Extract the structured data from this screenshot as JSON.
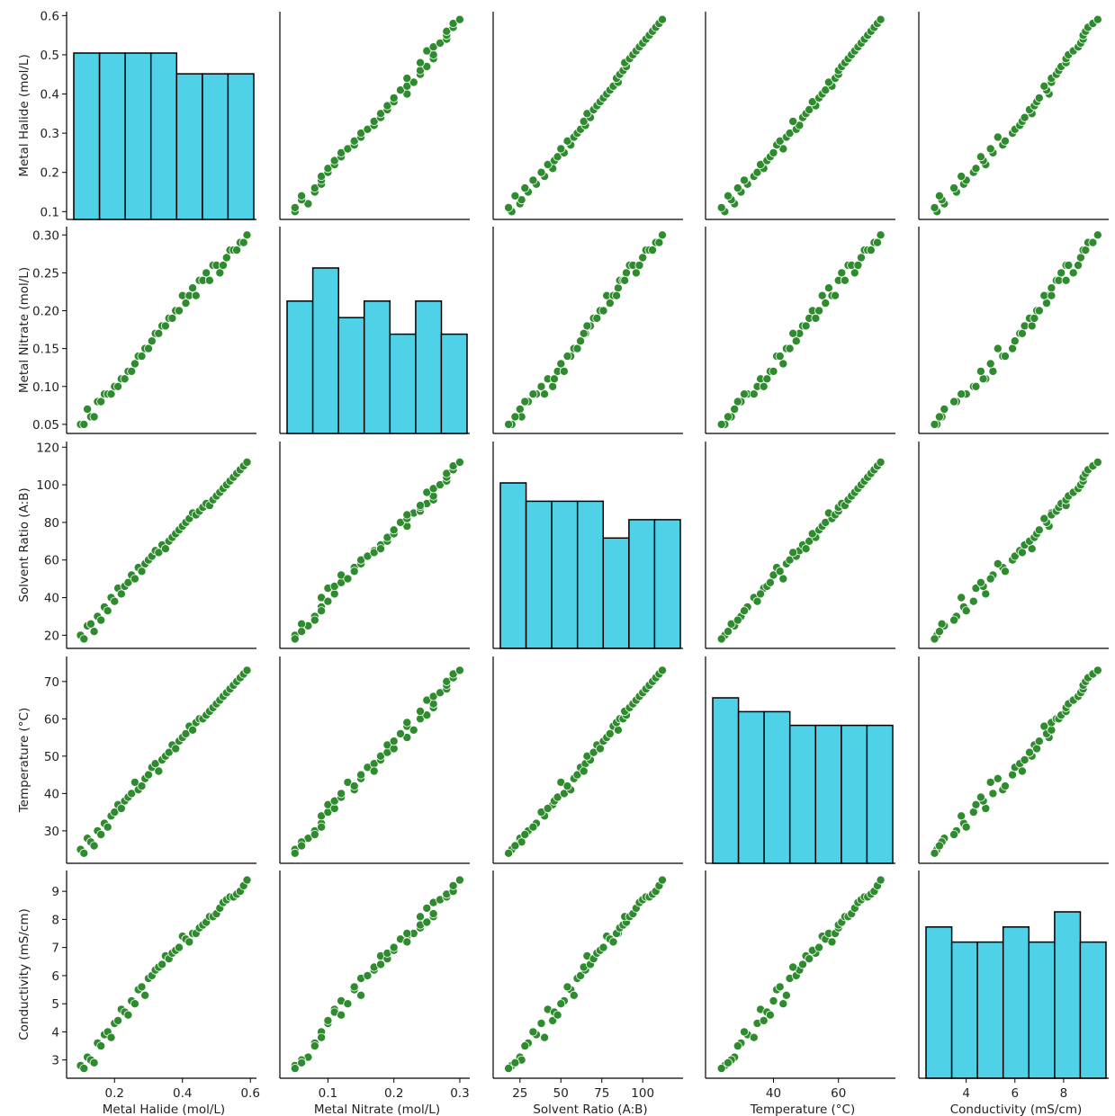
{
  "chart_data": {
    "type": "scatter",
    "variables": [
      {
        "name": "Metal Halide (mol/L)",
        "ticks": [
          0.1,
          0.2,
          0.3,
          0.4,
          0.5,
          0.6
        ],
        "ticks_x": [
          0.2,
          0.4,
          0.6
        ],
        "ticklabels": [
          "0.1",
          "0.2",
          "0.3",
          "0.4",
          "0.5",
          "0.6"
        ],
        "ticklabels_x": [
          "0.2",
          "0.4",
          "0.6"
        ],
        "range": [
          0.08,
          0.61
        ]
      },
      {
        "name": "Metal Nitrate (mol/L)",
        "ticks": [
          0.05,
          0.1,
          0.15,
          0.2,
          0.25,
          0.3
        ],
        "ticks_x": [
          0.1,
          0.2,
          0.3
        ],
        "ticklabels": [
          "0.05",
          "0.10",
          "0.15",
          "0.20",
          "0.25",
          "0.30"
        ],
        "ticklabels_x": [
          "0.1",
          "0.2",
          "0.3"
        ],
        "range": [
          0.038,
          0.311
        ]
      },
      {
        "name": "Solvent Ratio (A:B)",
        "ticks": [
          20,
          40,
          60,
          80,
          100,
          120
        ],
        "ticks_x": [
          25,
          50,
          75,
          100
        ],
        "ticklabels": [
          "20",
          "40",
          "60",
          "80",
          "100",
          "120"
        ],
        "ticklabels_x": [
          "25",
          "50",
          "75",
          "100"
        ],
        "range": [
          13,
          123
        ]
      },
      {
        "name": "Temperature (°C)",
        "ticks": [
          30,
          40,
          50,
          60,
          70
        ],
        "ticks_x": [
          40,
          60
        ],
        "ticklabels": [
          "30",
          "40",
          "50",
          "60",
          "70"
        ],
        "ticklabels_x": [
          "40",
          "60"
        ],
        "range": [
          21.3,
          76.7
        ]
      },
      {
        "name": "Conductivity (mS/cm)",
        "ticks": [
          3,
          4,
          5,
          6,
          7,
          8,
          9
        ],
        "ticks_x": [
          4,
          6,
          8
        ],
        "ticklabels": [
          "3",
          "4",
          "5",
          "6",
          "7",
          "8",
          "9"
        ],
        "ticklabels_x": [
          "4",
          "6",
          "8"
        ],
        "range": [
          2.35,
          9.74
        ]
      }
    ],
    "points": {
      "Metal Halide (mol/L)": [
        0.1,
        0.11,
        0.12,
        0.13,
        0.14,
        0.15,
        0.16,
        0.17,
        0.18,
        0.19,
        0.2,
        0.21,
        0.22,
        0.23,
        0.24,
        0.25,
        0.26,
        0.27,
        0.28,
        0.29,
        0.3,
        0.31,
        0.32,
        0.33,
        0.34,
        0.35,
        0.36,
        0.37,
        0.38,
        0.39,
        0.4,
        0.41,
        0.42,
        0.43,
        0.44,
        0.45,
        0.46,
        0.47,
        0.48,
        0.49,
        0.5,
        0.51,
        0.52,
        0.53,
        0.54,
        0.55,
        0.56,
        0.57,
        0.58,
        0.59
      ],
      "Metal Nitrate (mol/L)": [
        0.05,
        0.05,
        0.07,
        0.06,
        0.06,
        0.08,
        0.08,
        0.09,
        0.09,
        0.09,
        0.1,
        0.1,
        0.11,
        0.11,
        0.12,
        0.12,
        0.13,
        0.14,
        0.14,
        0.15,
        0.15,
        0.16,
        0.17,
        0.17,
        0.18,
        0.18,
        0.19,
        0.19,
        0.2,
        0.2,
        0.22,
        0.21,
        0.22,
        0.23,
        0.22,
        0.24,
        0.24,
        0.25,
        0.24,
        0.26,
        0.26,
        0.25,
        0.26,
        0.27,
        0.28,
        0.28,
        0.28,
        0.29,
        0.29,
        0.3
      ],
      "Solvent Ratio (A:B)": [
        20,
        18,
        25,
        26,
        22,
        30,
        28,
        35,
        33,
        40,
        38,
        45,
        42,
        46,
        48,
        52,
        50,
        56,
        54,
        58,
        60,
        62,
        65,
        64,
        68,
        66,
        70,
        72,
        74,
        76,
        78,
        80,
        82,
        85,
        84,
        86,
        88,
        90,
        89,
        92,
        94,
        96,
        98,
        100,
        102,
        104,
        106,
        108,
        110,
        112
      ],
      "Temperature (°C)": [
        25,
        24,
        28,
        27,
        26,
        30,
        29,
        32,
        31,
        34,
        35,
        37,
        36,
        38,
        39,
        40,
        43,
        41,
        42,
        44,
        45,
        47,
        48,
        46,
        49,
        50,
        51,
        53,
        52,
        54,
        55,
        56,
        58,
        57,
        59,
        60,
        60,
        61,
        62,
        63,
        64,
        65,
        66,
        67,
        68,
        69,
        70,
        71,
        72,
        73
      ],
      "Conductivity (mS/cm)": [
        2.8,
        2.7,
        3.1,
        3.0,
        2.9,
        3.6,
        3.5,
        3.9,
        4.0,
        3.8,
        4.3,
        4.4,
        4.8,
        4.7,
        4.6,
        5.1,
        5.0,
        5.5,
        5.6,
        5.3,
        5.9,
        6.0,
        6.2,
        6.3,
        6.4,
        6.7,
        6.6,
        6.8,
        6.9,
        7.0,
        7.4,
        7.3,
        7.2,
        7.5,
        7.5,
        7.7,
        7.8,
        7.9,
        8.1,
        8.1,
        8.2,
        8.4,
        8.6,
        8.7,
        8.8,
        8.8,
        8.9,
        9.0,
        9.2,
        9.4
      ]
    },
    "histograms": [
      {
        "variable": "Metal Halide (mol/L)",
        "heights": [
          8,
          8,
          8,
          8,
          7,
          7,
          7
        ]
      },
      {
        "variable": "Metal Nitrate (mol/L)",
        "heights": [
          8,
          10,
          7,
          8,
          6,
          8,
          6
        ]
      },
      {
        "variable": "Solvent Ratio (A:B)",
        "heights": [
          9,
          8,
          8,
          8,
          6,
          7,
          7
        ]
      },
      {
        "variable": "Temperature (°C)",
        "heights": [
          8,
          7.33,
          7.33,
          6.67,
          6.67,
          6.67,
          6.67
        ]
      },
      {
        "variable": "Conductivity (mS/cm)",
        "heights": [
          7,
          6.3,
          6.3,
          7,
          6.3,
          7.7,
          6.3
        ]
      }
    ],
    "grid": false,
    "legend": "none",
    "colors": {
      "scatter": "#2e8b2e",
      "scatter_edge": "#ffffff",
      "hist_fill": "#4fd1e8",
      "hist_edge": "#000000",
      "axis": "#000000",
      "text": "#222222"
    }
  }
}
